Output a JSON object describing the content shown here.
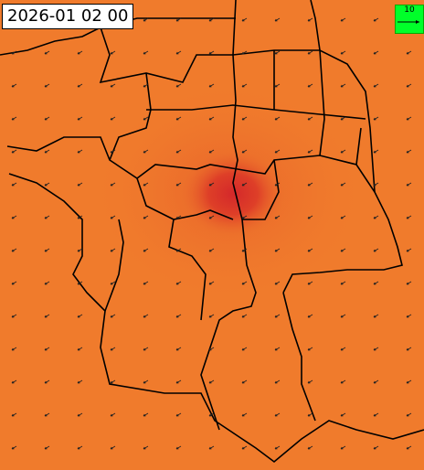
{
  "timestamp": "2026-01 02 00",
  "legend": {
    "label": "10"
  }
}
